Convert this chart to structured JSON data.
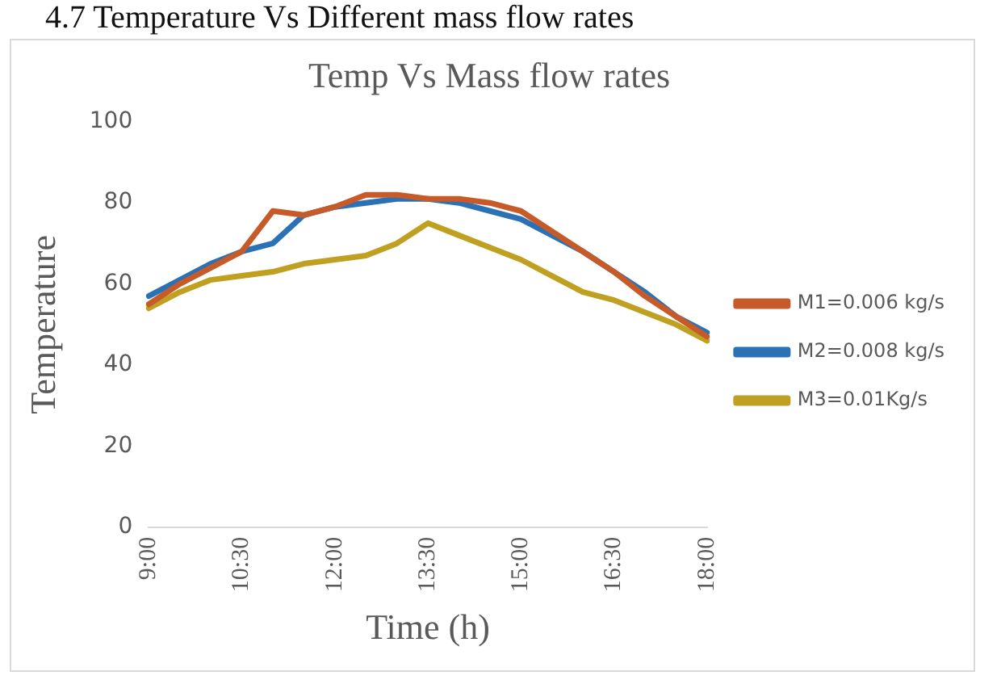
{
  "chart_data": {
    "type": "line",
    "title": "Temp Vs Mass flow rates",
    "xlabel": "Time (h)",
    "ylabel": "Temperature",
    "annotations": [
      "4.7 Temperature Vs Different mass flow rates"
    ],
    "categories": [
      "9:00",
      null,
      null,
      "10:30",
      null,
      null,
      "12:00",
      null,
      null,
      "13:30",
      null,
      null,
      "15:00",
      null,
      null,
      "16:30",
      null,
      null,
      "18:00"
    ],
    "series": [
      {
        "name": "M1=0.006 kg/s",
        "color": "#c65a28",
        "values": [
          55,
          60,
          64,
          68,
          78,
          77,
          79,
          82,
          82,
          81,
          81,
          80,
          78,
          73,
          68,
          63,
          57,
          52,
          47
        ]
      },
      {
        "name": "M2=0.008 kg/s",
        "color": "#2a72b5",
        "values": [
          57,
          61,
          65,
          68,
          70,
          77,
          79,
          80,
          81,
          81,
          80,
          78,
          76,
          72,
          68,
          63,
          58,
          52,
          48
        ]
      },
      {
        "name": "M3=0.01Kg/s",
        "color": "#c0a020",
        "values": [
          54,
          58,
          61,
          62,
          63,
          65,
          66,
          67,
          70,
          75,
          72,
          69,
          66,
          62,
          58,
          56,
          53,
          50,
          46
        ]
      }
    ],
    "ylim": [
      0,
      100
    ],
    "yticks": [
      0,
      20,
      40,
      60,
      80,
      100
    ],
    "legend": "right",
    "marker": "none",
    "line_style": "solid"
  }
}
